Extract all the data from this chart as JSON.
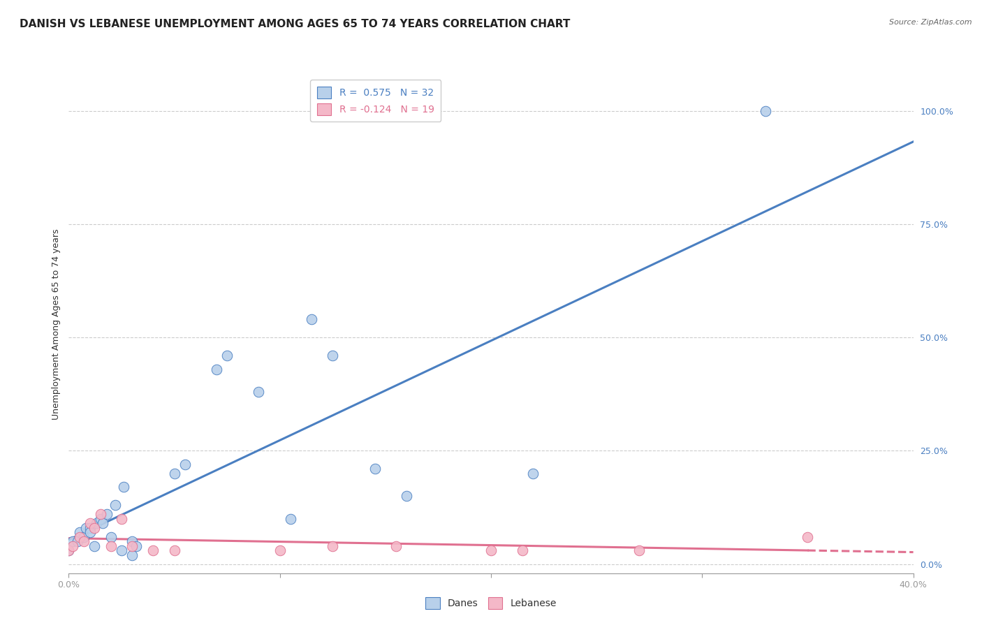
{
  "title": "DANISH VS LEBANESE UNEMPLOYMENT AMONG AGES 65 TO 74 YEARS CORRELATION CHART",
  "source": "Source: ZipAtlas.com",
  "ylabel": "Unemployment Among Ages 65 to 74 years",
  "xlim": [
    0.0,
    0.4
  ],
  "ylim": [
    -0.02,
    1.08
  ],
  "yticks": [
    0.0,
    0.25,
    0.5,
    0.75,
    1.0
  ],
  "ytick_labels": [
    "0.0%",
    "25.0%",
    "50.0%",
    "75.0%",
    "100.0%"
  ],
  "xticks": [
    0.0,
    0.1,
    0.2,
    0.3,
    0.4
  ],
  "xtick_labels": [
    "0.0%",
    "",
    "",
    "",
    "40.0%"
  ],
  "danes_R": 0.575,
  "danes_N": 32,
  "lebanese_R": -0.124,
  "lebanese_N": 19,
  "danes_color": "#b8d0ea",
  "danes_line_color": "#4a7fc1",
  "lebanese_color": "#f4b8c8",
  "lebanese_line_color": "#e07090",
  "danes_x": [
    0.0,
    0.002,
    0.004,
    0.005,
    0.007,
    0.008,
    0.01,
    0.01,
    0.012,
    0.013,
    0.015,
    0.016,
    0.018,
    0.02,
    0.022,
    0.025,
    0.026,
    0.03,
    0.03,
    0.032,
    0.05,
    0.055,
    0.07,
    0.075,
    0.09,
    0.105,
    0.115,
    0.125,
    0.145,
    0.16,
    0.22,
    0.33
  ],
  "danes_y": [
    0.03,
    0.05,
    0.05,
    0.07,
    0.06,
    0.08,
    0.08,
    0.07,
    0.04,
    0.09,
    0.1,
    0.09,
    0.11,
    0.06,
    0.13,
    0.03,
    0.17,
    0.02,
    0.05,
    0.04,
    0.2,
    0.22,
    0.43,
    0.46,
    0.38,
    0.1,
    0.54,
    0.46,
    0.21,
    0.15,
    0.2,
    1.0
  ],
  "lebanese_x": [
    0.0,
    0.002,
    0.005,
    0.007,
    0.01,
    0.012,
    0.015,
    0.02,
    0.025,
    0.03,
    0.04,
    0.05,
    0.1,
    0.125,
    0.155,
    0.2,
    0.215,
    0.27,
    0.35
  ],
  "lebanese_y": [
    0.03,
    0.04,
    0.06,
    0.05,
    0.09,
    0.08,
    0.11,
    0.04,
    0.1,
    0.04,
    0.03,
    0.03,
    0.03,
    0.04,
    0.04,
    0.03,
    0.03,
    0.03,
    0.06
  ],
  "background_color": "#ffffff",
  "grid_color": "#cccccc",
  "title_fontsize": 11,
  "axis_fontsize": 9,
  "tick_fontsize": 9,
  "legend_fontsize": 10,
  "marker_size": 110,
  "line_width": 2.2
}
